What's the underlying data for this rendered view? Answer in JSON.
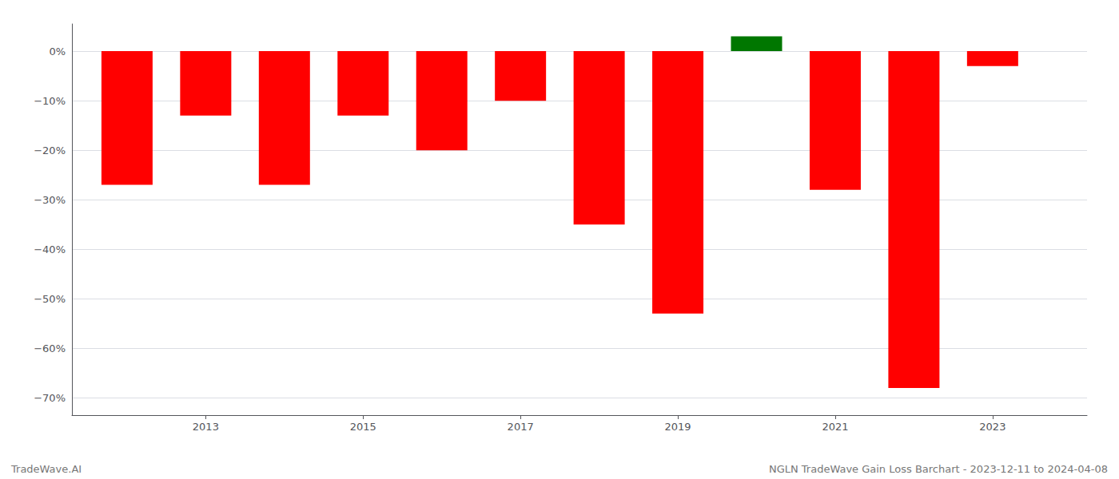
{
  "chart_data": {
    "type": "bar",
    "x": [
      2012,
      2013,
      2014,
      2015,
      2016,
      2017,
      2018,
      2019,
      2020,
      2021,
      2022,
      2023
    ],
    "values": [
      -0.27,
      -0.13,
      -0.27,
      -0.13,
      -0.2,
      -0.1,
      -0.35,
      -0.53,
      0.03,
      -0.28,
      -0.68,
      -0.03
    ],
    "colors": [
      "#ff0000",
      "#ff0000",
      "#ff0000",
      "#ff0000",
      "#ff0000",
      "#ff0000",
      "#ff0000",
      "#ff0000",
      "#007700",
      "#ff0000",
      "#ff0000",
      "#ff0000"
    ],
    "xlim": [
      2011.3,
      2024.2
    ],
    "xticks": [
      2013,
      2015,
      2017,
      2019,
      2021,
      2023
    ],
    "ylim": [
      -0.735,
      0.055
    ],
    "yticks": [
      {
        "value": 0.0,
        "label": "0%"
      },
      {
        "value": -0.1,
        "label": "−10%"
      },
      {
        "value": -0.2,
        "label": "−20%"
      },
      {
        "value": -0.3,
        "label": "−30%"
      },
      {
        "value": -0.4,
        "label": "−40%"
      },
      {
        "value": -0.5,
        "label": "−50%"
      },
      {
        "value": -0.6,
        "label": "−60%"
      },
      {
        "value": -0.7,
        "label": "−70%"
      }
    ],
    "annotations": [
      "TradeWave.AI",
      "NGLN TradeWave Gain Loss Barchart - 2023-12-11 to 2024-04-08"
    ],
    "grid": true
  }
}
